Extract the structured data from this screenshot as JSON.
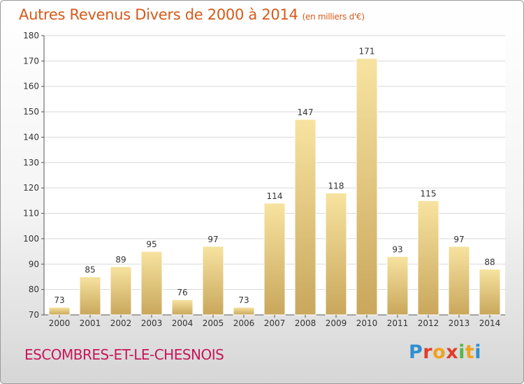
{
  "title": "Autres Revenus Divers de 2000 à 2014",
  "unit_label": "(en milliers d'€)",
  "commune": "ESCOMBRES-ET-LE-CHESNOIS",
  "logo": "Proxiti",
  "colors": {
    "title": "#d45a1a",
    "commune": "#c8155a",
    "bar_light": "#f7e3a0",
    "bar_dark": "#c9a75c",
    "grid": "#d8d8d8"
  },
  "chart_data": {
    "type": "bar",
    "title": "Autres Revenus Divers de 2000 à 2014",
    "subtitle": "(en milliers d'€)",
    "categories": [
      "2000",
      "2001",
      "2002",
      "2003",
      "2004",
      "2005",
      "2006",
      "2007",
      "2008",
      "2009",
      "2010",
      "2011",
      "2012",
      "2013",
      "2014"
    ],
    "values": [
      73,
      85,
      89,
      95,
      76,
      97,
      73,
      114,
      147,
      118,
      171,
      93,
      115,
      97,
      88
    ],
    "ylim": [
      70,
      180
    ],
    "yticks": [
      70,
      80,
      90,
      100,
      110,
      120,
      130,
      140,
      150,
      160,
      170,
      180
    ],
    "grid": true,
    "data_labels": true
  }
}
